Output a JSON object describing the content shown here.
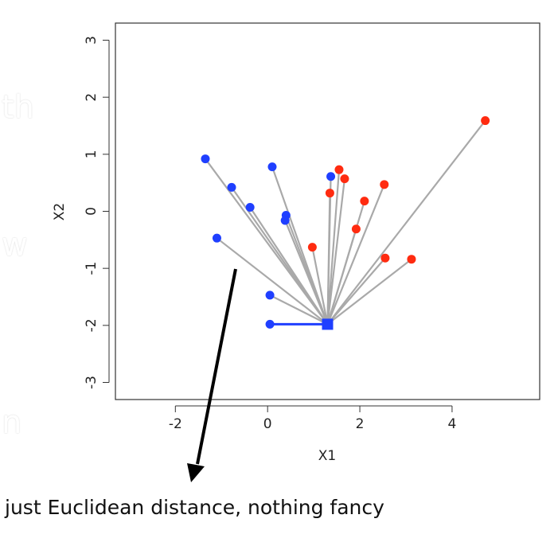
{
  "chart_data": {
    "type": "scatter",
    "title": "",
    "xlabel": "X1",
    "ylabel": "X2",
    "xlim": [
      -3.3,
      5.9
    ],
    "ylim": [
      -3.3,
      3.3
    ],
    "xticks": [
      -2,
      0,
      2,
      4
    ],
    "yticks": [
      -3,
      -2,
      -1,
      0,
      1,
      2,
      3
    ],
    "grid": false,
    "query_point": {
      "x": 1.3,
      "y": -1.98,
      "color": "#1f3fff",
      "marker": "square"
    },
    "nearest_neighbor": {
      "x": 0.05,
      "y": -1.98
    },
    "series": [
      {
        "color": "#1f3fff",
        "points": [
          {
            "x": -1.35,
            "y": 0.92
          },
          {
            "x": 0.1,
            "y": 0.78
          },
          {
            "x": -0.78,
            "y": 0.42
          },
          {
            "x": -0.38,
            "y": 0.07
          },
          {
            "x": 0.4,
            "y": -0.07
          },
          {
            "x": 0.38,
            "y": -0.16
          },
          {
            "x": 1.37,
            "y": 0.61
          },
          {
            "x": -1.1,
            "y": -0.47
          },
          {
            "x": 0.05,
            "y": -1.47
          },
          {
            "x": 0.05,
            "y": -1.98
          }
        ]
      },
      {
        "color": "#ff2b10",
        "points": [
          {
            "x": 4.72,
            "y": 1.59
          },
          {
            "x": 1.55,
            "y": 0.73
          },
          {
            "x": 1.67,
            "y": 0.57
          },
          {
            "x": 2.53,
            "y": 0.47
          },
          {
            "x": 1.35,
            "y": 0.32
          },
          {
            "x": 2.1,
            "y": 0.18
          },
          {
            "x": 1.92,
            "y": -0.31
          },
          {
            "x": 0.97,
            "y": -0.63
          },
          {
            "x": 2.55,
            "y": -0.82
          },
          {
            "x": 3.12,
            "y": -0.84
          }
        ]
      }
    ],
    "annotation": "just Euclidean distance, nothing fancy"
  },
  "colors": {
    "line": "#a9a9a9",
    "axis": "#333333",
    "arrow": "#000000"
  },
  "background_fragments": [
    "th",
    "w",
    "n"
  ]
}
